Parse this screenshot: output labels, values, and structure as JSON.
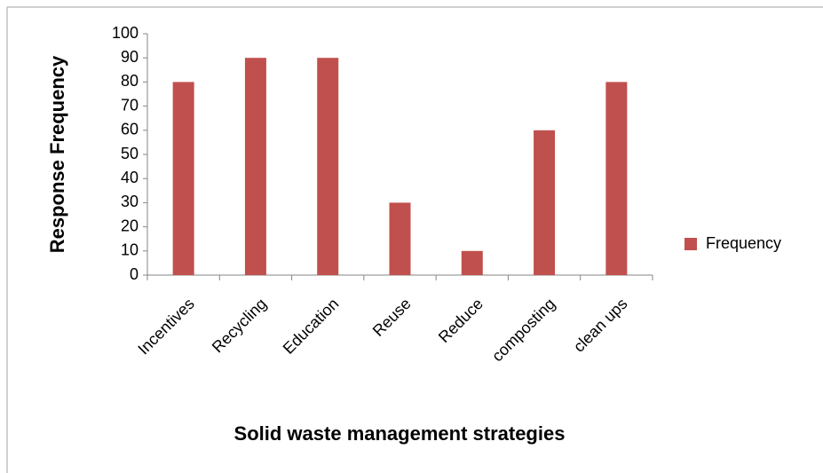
{
  "chart_data": {
    "type": "bar",
    "x_label": "Solid waste management strategies",
    "y_label": "Response Frequency",
    "categories": [
      "Incentives",
      "Recycling",
      "Education",
      "Reuse",
      "Reduce",
      "composting",
      "clean ups"
    ],
    "series": [
      {
        "name": "Frequency",
        "color": "#c0504d",
        "values": [
          80,
          90,
          90,
          30,
          10,
          60,
          80
        ]
      }
    ],
    "ylim": [
      0,
      100
    ],
    "yticks": [
      0,
      10,
      20,
      30,
      40,
      50,
      60,
      70,
      80,
      90,
      100
    ],
    "legend": "right",
    "grid": false
  }
}
